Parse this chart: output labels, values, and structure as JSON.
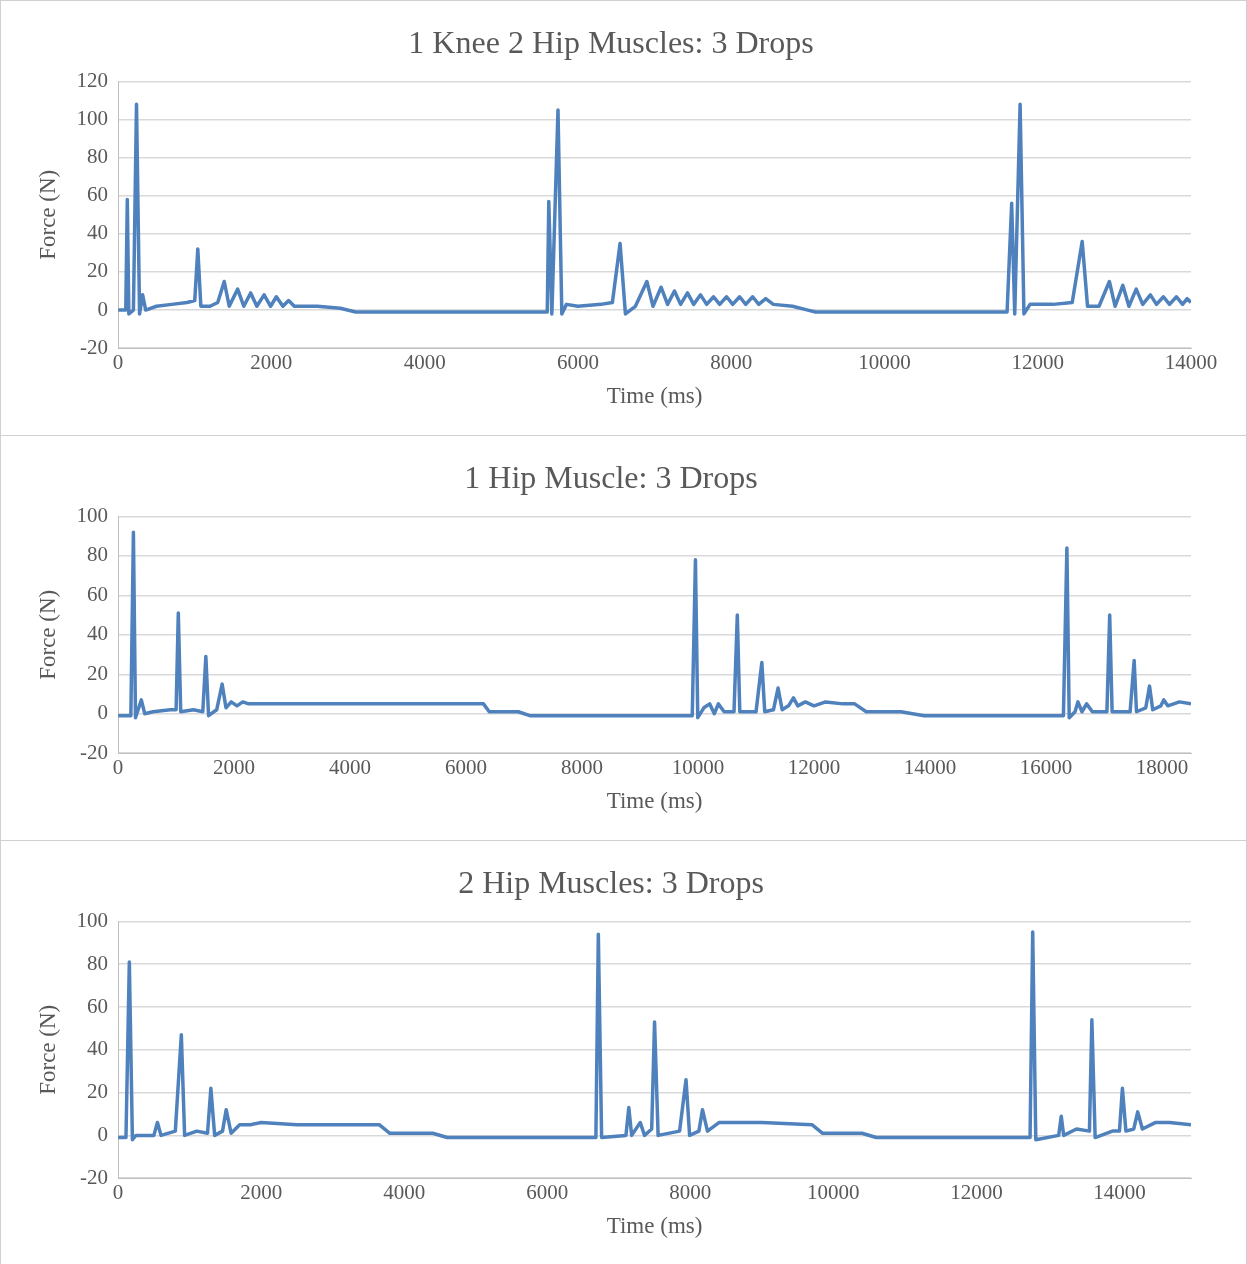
{
  "chart_data": [
    {
      "type": "line",
      "title": "1 Knee 2 Hip Muscles: 3 Drops",
      "xlabel": "Time (ms)",
      "ylabel": "Force (N)",
      "color": "#4f81bd",
      "grid": "y",
      "xlim": [
        0,
        14000
      ],
      "xticks": [
        0,
        2000,
        4000,
        6000,
        8000,
        10000,
        12000,
        14000
      ],
      "ylim": [
        -20,
        120
      ],
      "yticks": [
        -20,
        0,
        20,
        40,
        60,
        80,
        100,
        120
      ],
      "x": [
        0,
        100,
        120,
        140,
        200,
        240,
        280,
        320,
        360,
        500,
        700,
        900,
        1000,
        1040,
        1080,
        1200,
        1300,
        1385,
        1450,
        1560,
        1640,
        1730,
        1810,
        1905,
        1990,
        2065,
        2150,
        2225,
        2300,
        2600,
        2900,
        3100,
        5600,
        5620,
        5660,
        5740,
        5790,
        5850,
        6000,
        6300,
        6450,
        6550,
        6620,
        6750,
        6900,
        6980,
        7085,
        7170,
        7260,
        7340,
        7430,
        7510,
        7600,
        7680,
        7770,
        7850,
        7940,
        8020,
        8110,
        8190,
        8280,
        8360,
        8450,
        8550,
        8800,
        9000,
        9100,
        11600,
        11660,
        11700,
        11770,
        11820,
        11900,
        12200,
        12450,
        12580,
        12650,
        12800,
        12935,
        13010,
        13110,
        13190,
        13285,
        13370,
        13470,
        13550,
        13640,
        13720,
        13810,
        13890,
        13950,
        14000
      ],
      "values": [
        0,
        0,
        58,
        -2,
        0,
        108,
        -2,
        8,
        0,
        2,
        3,
        4,
        5,
        32,
        2,
        2,
        4,
        15,
        2,
        11,
        2,
        9,
        2,
        8,
        2,
        7,
        2,
        5,
        2,
        2,
        1,
        -1,
        -1,
        57,
        -2,
        105,
        -2,
        3,
        2,
        3,
        4,
        35,
        -2,
        2,
        15,
        2,
        12,
        3,
        10,
        3,
        9,
        3,
        8,
        3,
        7,
        3,
        7,
        3,
        7,
        3,
        7,
        3,
        6,
        3,
        2,
        0,
        -1,
        -1,
        56,
        -2,
        108,
        -2,
        3,
        3,
        4,
        36,
        2,
        2,
        15,
        2,
        13,
        2,
        11,
        3,
        8,
        3,
        7,
        3,
        7,
        3,
        6,
        4
      ]
    },
    {
      "type": "line",
      "title": "1 Hip Muscle: 3 Drops",
      "xlabel": "Time (ms)",
      "ylabel": "Force (N)",
      "color": "#4f81bd",
      "grid": "y",
      "xlim": [
        0,
        18500
      ],
      "xticks": [
        0,
        2000,
        4000,
        6000,
        8000,
        10000,
        12000,
        14000,
        16000,
        18000
      ],
      "ylim": [
        -20,
        100
      ],
      "yticks": [
        -20,
        0,
        20,
        40,
        60,
        80,
        100
      ],
      "x": [
        0,
        220,
        264,
        300,
        400,
        460,
        600,
        900,
        1000,
        1038,
        1080,
        1300,
        1460,
        1513,
        1560,
        1700,
        1794,
        1860,
        1950,
        2050,
        2150,
        2250,
        2500,
        3000,
        4000,
        5000,
        6300,
        6400,
        6900,
        7100,
        9900,
        9955,
        9995,
        10100,
        10200,
        10280,
        10350,
        10450,
        10620,
        10677,
        10720,
        11000,
        11100,
        11150,
        11300,
        11380,
        11450,
        11560,
        11645,
        11720,
        11850,
        12000,
        12200,
        12500,
        12700,
        12900,
        13500,
        13900,
        16300,
        16360,
        16400,
        16500,
        16550,
        16620,
        16700,
        16800,
        17050,
        17098,
        17140,
        17450,
        17520,
        17560,
        17720,
        17785,
        17840,
        17980,
        18030,
        18100,
        18300,
        18500
      ],
      "values": [
        -1,
        -1,
        92,
        -2,
        7,
        0,
        1,
        2,
        2,
        51,
        1,
        2,
        1,
        29,
        -1,
        2,
        15,
        3,
        6,
        4,
        6,
        5,
        5,
        5,
        5,
        5,
        5,
        1,
        1,
        -1,
        -1,
        78,
        -2,
        3,
        5,
        0,
        5,
        1,
        1,
        50,
        1,
        1,
        26,
        1,
        2,
        13,
        2,
        4,
        8,
        4,
        6,
        4,
        6,
        5,
        5,
        1,
        1,
        -1,
        -1,
        84,
        -2,
        1,
        6,
        1,
        5,
        1,
        1,
        50,
        1,
        1,
        27,
        1,
        3,
        14,
        2,
        4,
        7,
        4,
        6,
        5
      ]
    },
    {
      "type": "line",
      "title": "2 Hip Muscles: 3 Drops",
      "xlabel": "Time (ms)",
      "ylabel": "Force (N)",
      "color": "#4f81bd",
      "grid": "y",
      "xlim": [
        0,
        15000
      ],
      "xticks": [
        0,
        2000,
        4000,
        6000,
        8000,
        10000,
        12000,
        14000
      ],
      "ylim": [
        -20,
        100
      ],
      "yticks": [
        -20,
        0,
        20,
        40,
        60,
        80,
        100
      ],
      "x": [
        0,
        110,
        157,
        200,
        250,
        500,
        550,
        600,
        800,
        884,
        930,
        1100,
        1250,
        1297,
        1350,
        1460,
        1511,
        1580,
        1700,
        1850,
        2000,
        2500,
        3000,
        3650,
        3800,
        4400,
        4600,
        6680,
        6714,
        6760,
        7100,
        7140,
        7180,
        7300,
        7360,
        7460,
        7500,
        7550,
        7850,
        7940,
        7990,
        8120,
        8170,
        8240,
        8400,
        8700,
        9000,
        9700,
        9850,
        10400,
        10600,
        12750,
        12787,
        12830,
        13150,
        13186,
        13220,
        13400,
        13580,
        13614,
        13660,
        13900,
        14000,
        14041,
        14090,
        14200,
        14255,
        14320,
        14500,
        14700,
        15000
      ],
      "values": [
        -1,
        -1,
        81,
        -2,
        0,
        0,
        6,
        0,
        2,
        47,
        0,
        2,
        1,
        22,
        0,
        2,
        12,
        1,
        5,
        5,
        6,
        5,
        5,
        5,
        1,
        1,
        -1,
        -1,
        94,
        -1,
        0,
        13,
        0,
        6,
        0,
        3,
        53,
        0,
        2,
        26,
        0,
        2,
        12,
        2,
        6,
        6,
        6,
        5,
        1,
        1,
        -1,
        -1,
        95,
        -2,
        0,
        9,
        0,
        3,
        2,
        54,
        -1,
        2,
        2,
        22,
        2,
        3,
        11,
        3,
        6,
        6,
        5
      ]
    }
  ]
}
